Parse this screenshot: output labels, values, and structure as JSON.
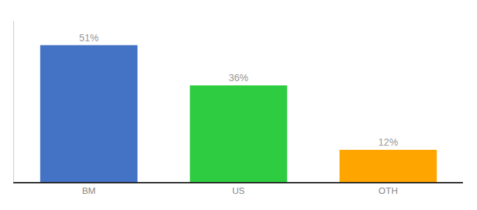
{
  "chart_data": {
    "type": "bar",
    "categories": [
      "BM",
      "US",
      "OTH"
    ],
    "values": [
      51,
      36,
      12
    ],
    "value_labels": [
      "51%",
      "36%",
      "12%"
    ],
    "colors": [
      "#4472C4",
      "#2ECC40",
      "#FFA500"
    ],
    "ylim": [
      0,
      60
    ],
    "grid": false,
    "data_labels": true,
    "tick_labels": "x"
  }
}
